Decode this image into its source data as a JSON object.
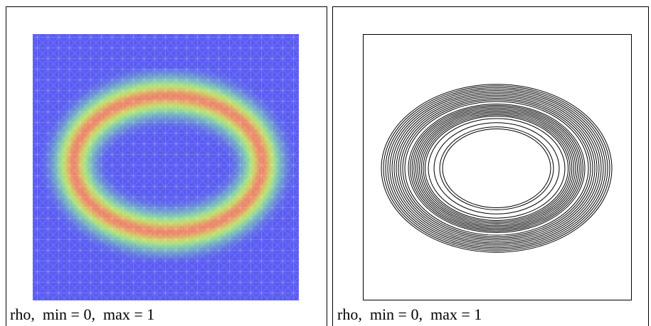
{
  "panels": [
    {
      "caption": "rho,  min = 0,  max = 1"
    },
    {
      "caption": "rho,  min = 0,  max = 1"
    }
  ]
}
